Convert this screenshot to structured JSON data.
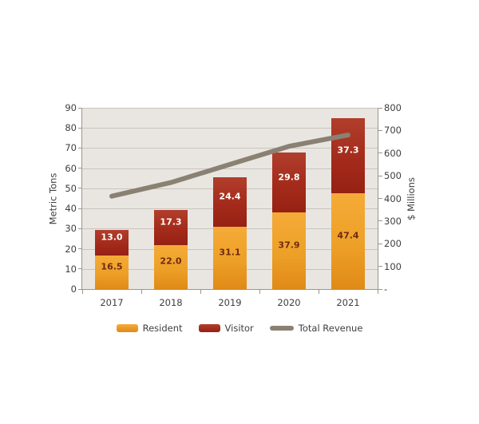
{
  "chart_data": {
    "type": "bar",
    "subtype": "stacked-bar-with-line-combo",
    "categories": [
      "2017",
      "2018",
      "2019",
      "2020",
      "2021"
    ],
    "series": [
      {
        "name": "Resident",
        "type": "bar",
        "stack": "tons",
        "axis": "left",
        "values": [
          16.5,
          22.0,
          31.1,
          37.9,
          47.4
        ],
        "value_labels": [
          "16.5",
          "22.0",
          "31.1",
          "37.9",
          "47.4"
        ],
        "color_top": "#f5ab38",
        "color_bottom": "#e08a18",
        "label_color": "#6f2a12"
      },
      {
        "name": "Visitor",
        "type": "bar",
        "stack": "tons",
        "axis": "left",
        "values": [
          13.0,
          17.3,
          24.4,
          29.8,
          37.3
        ],
        "value_labels": [
          "13.0",
          "17.3",
          "24.4",
          "29.8",
          "37.3"
        ],
        "color_top": "#b13e2c",
        "color_bottom": "#962113",
        "label_color": "#ffffff"
      },
      {
        "name": "Total Revenue",
        "type": "line",
        "axis": "right",
        "values": [
          410,
          470,
          550,
          630,
          680
        ],
        "color": "#8a8173"
      }
    ],
    "left_axis": {
      "title": "Metric Tons",
      "min": 0,
      "max": 90,
      "step": 10,
      "tick_labels_top_to_bottom": [
        "90",
        "80",
        "70",
        "60",
        "50",
        "40",
        "30",
        "20",
        "10",
        "0"
      ]
    },
    "right_axis": {
      "title": "$ Millions",
      "min": 0,
      "max": 800,
      "step": 100,
      "tick_labels_top_to_bottom": [
        "800",
        "700",
        "600",
        "500",
        "400",
        "300",
        "200",
        "100",
        "-"
      ]
    },
    "grid": true,
    "legend_position": "bottom",
    "legend": [
      {
        "label": "Resident",
        "swatch": "bar",
        "color_top": "#f5ab38",
        "color_bottom": "#e08a18"
      },
      {
        "label": "Visitor",
        "swatch": "bar",
        "color_top": "#b13e2c",
        "color_bottom": "#962113"
      },
      {
        "label": "Total Revenue",
        "swatch": "line",
        "color": "#8a8173"
      }
    ],
    "colors": {
      "plot_background": "#e9e6e1",
      "gridline": "#c9c3bb",
      "axis_line": "#9b958c",
      "tick_text": "#3f3f3f"
    }
  }
}
